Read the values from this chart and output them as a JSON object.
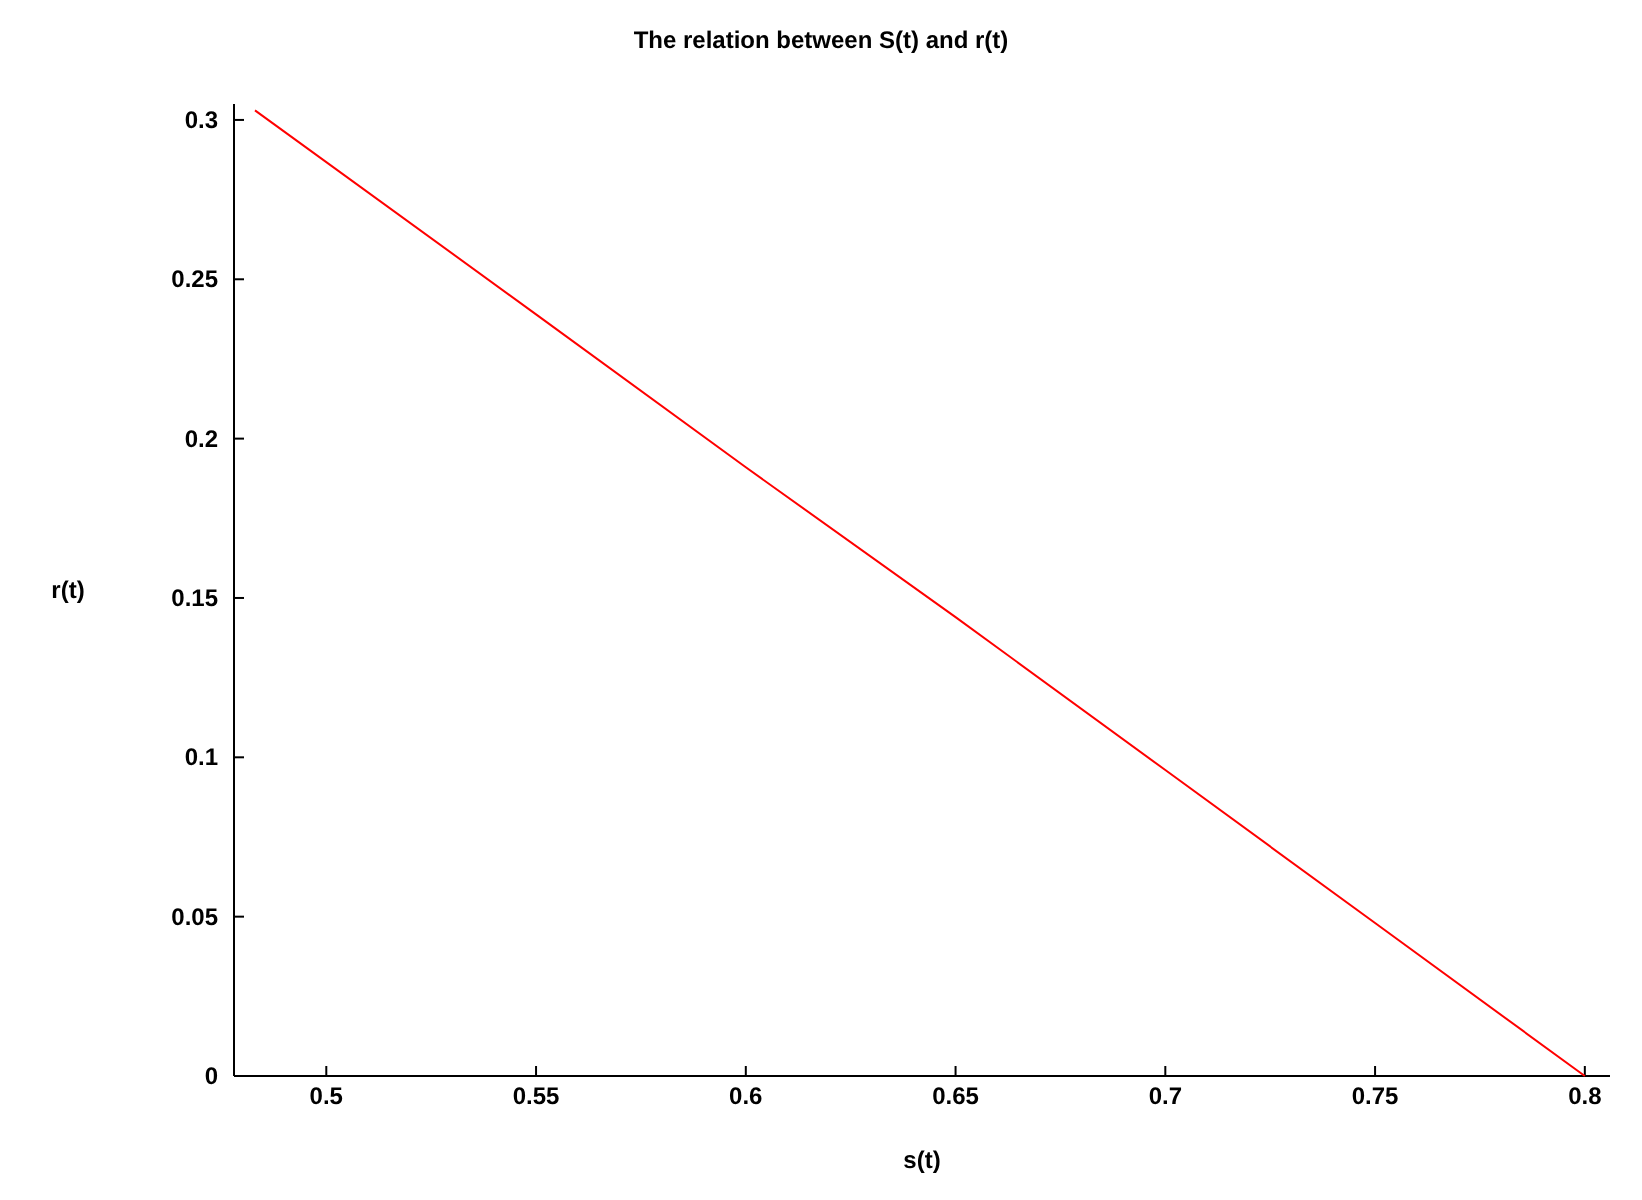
{
  "chart_data": {
    "type": "line",
    "title": "The relation between S(t) and r(t)",
    "xlabel": "s(t)",
    "ylabel": "r(t)",
    "x": [
      0.483,
      0.55,
      0.6,
      0.65,
      0.7,
      0.75,
      0.8
    ],
    "series": [
      {
        "color": "#ff0000",
        "values": [
          0.303,
          0.239,
          0.191,
          0.144,
          0.096,
          0.048,
          0
        ]
      }
    ],
    "xlim": [
      0.478,
      0.806
    ],
    "xticks": [
      0.5,
      0.55,
      0.6,
      0.65,
      0.7,
      0.75,
      0.8
    ],
    "ylim": [
      0,
      0.305
    ],
    "yticks": [
      0,
      0.05,
      0.1,
      0.15,
      0.2,
      0.25,
      0.3
    ],
    "marker": "none",
    "line_style": "solid"
  }
}
